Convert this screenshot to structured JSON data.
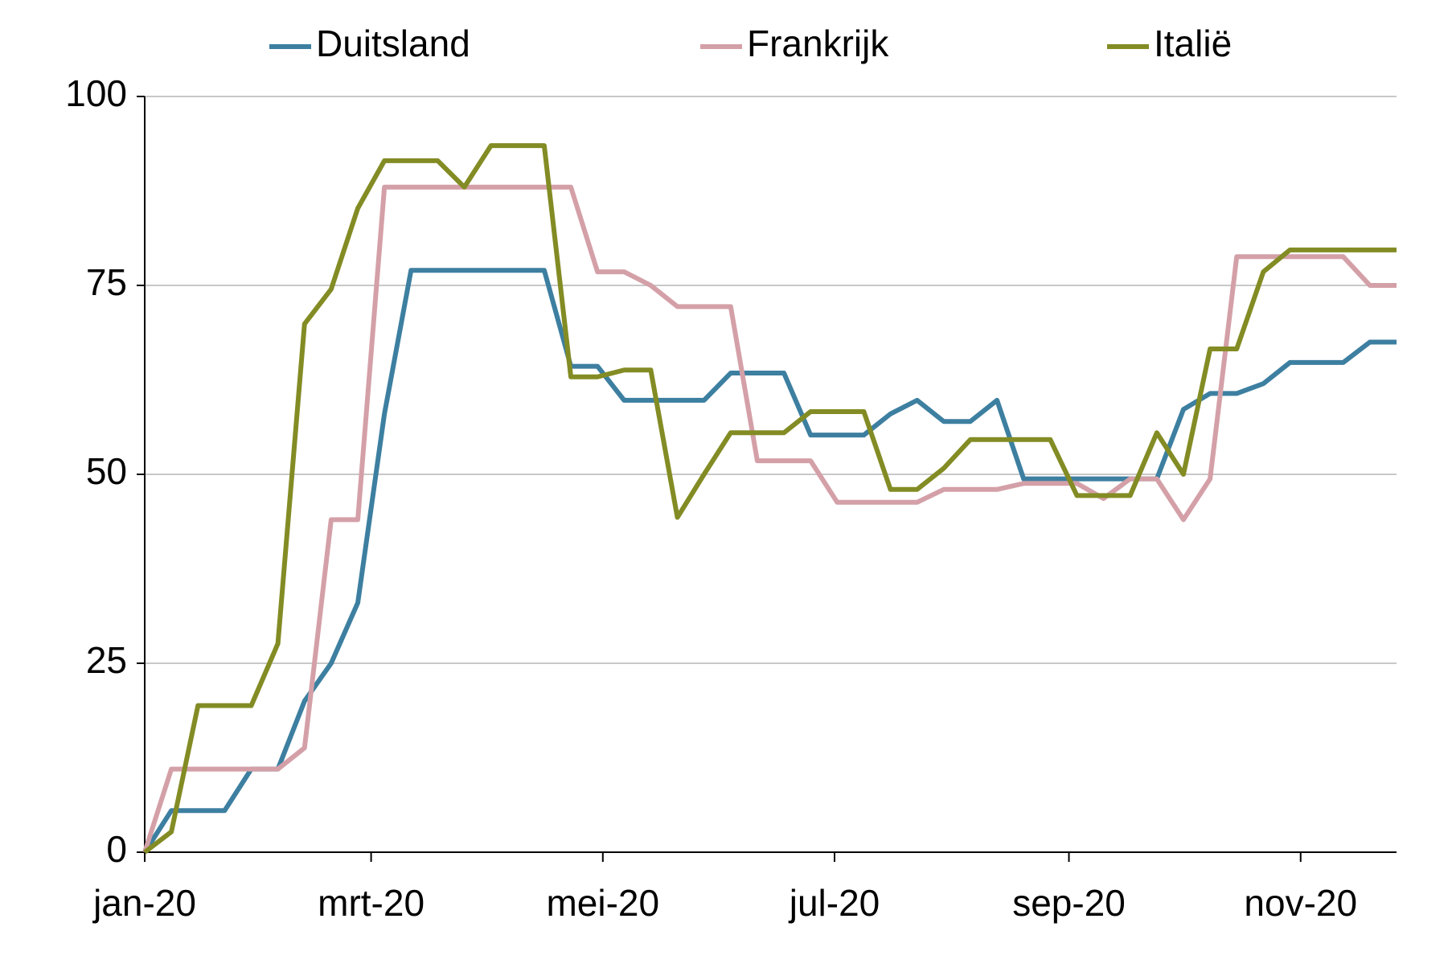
{
  "chart_data": {
    "type": "line",
    "x": [
      0,
      1,
      2,
      3,
      4,
      5,
      6,
      7,
      8,
      9,
      10,
      11,
      12,
      13,
      14,
      15,
      16,
      17,
      18,
      19,
      20,
      21,
      22,
      23,
      24,
      25,
      26,
      27,
      28,
      29,
      30,
      31,
      32,
      33,
      34,
      35,
      36,
      37,
      38,
      39,
      40,
      41,
      42,
      43,
      44,
      45,
      46,
      47
    ],
    "xlim": [
      0,
      47
    ],
    "xticks": [
      {
        "value": 0,
        "label": "jan-20"
      },
      {
        "value": 8.5,
        "label": "mrt-20"
      },
      {
        "value": 17.2,
        "label": "mei-20"
      },
      {
        "value": 25.9,
        "label": "jul-20"
      },
      {
        "value": 34.7,
        "label": "sep-20"
      },
      {
        "value": 43.4,
        "label": "nov-20"
      }
    ],
    "ylim": [
      0,
      100
    ],
    "yticks": [
      0,
      25,
      50,
      75,
      100
    ],
    "grid": true,
    "legend": "top",
    "series": [
      {
        "name": "Duitsland",
        "color": "#3d7fa0",
        "values": [
          0,
          5.5,
          5.5,
          5.5,
          11,
          11,
          20,
          25,
          33,
          58,
          77,
          77,
          77,
          77,
          77,
          77,
          64.3,
          64.3,
          59.8,
          59.8,
          59.8,
          59.8,
          63.4,
          63.4,
          63.4,
          55.2,
          55.2,
          55.2,
          58,
          59.8,
          57,
          57,
          59.8,
          49.4,
          49.4,
          49.4,
          49.4,
          49.4,
          49.4,
          58.6,
          60.7,
          60.7,
          62,
          64.8,
          64.8,
          64.8,
          67.5,
          67.5
        ]
      },
      {
        "name": "Frankrijk",
        "color": "#d4a0a8",
        "values": [
          0,
          11,
          11,
          11,
          11,
          11,
          13.8,
          44,
          44,
          88,
          88,
          88,
          88,
          88,
          88,
          88,
          88,
          76.8,
          76.8,
          75,
          72.2,
          72.2,
          72.2,
          51.8,
          51.8,
          51.8,
          46.3,
          46.3,
          46.3,
          46.3,
          48,
          48,
          48,
          48.8,
          48.8,
          48.8,
          46.8,
          49.4,
          49.4,
          44,
          49.4,
          78.8,
          78.8,
          78.8,
          78.8,
          78.8,
          75,
          75
        ]
      },
      {
        "name": "Italië",
        "color": "#838c24",
        "values": [
          0,
          2.7,
          19.4,
          19.4,
          19.4,
          27.6,
          69.9,
          74.5,
          85.2,
          91.5,
          91.5,
          91.5,
          88,
          93.5,
          93.5,
          93.5,
          62.9,
          62.9,
          63.8,
          63.8,
          44.3,
          50,
          55.5,
          55.5,
          55.5,
          58.3,
          58.3,
          58.3,
          48,
          48,
          50.8,
          54.6,
          54.6,
          54.6,
          54.6,
          47.2,
          47.2,
          47.2,
          55.5,
          50,
          66.6,
          66.6,
          76.8,
          79.7,
          79.7,
          79.7,
          79.7,
          79.7
        ]
      }
    ]
  }
}
